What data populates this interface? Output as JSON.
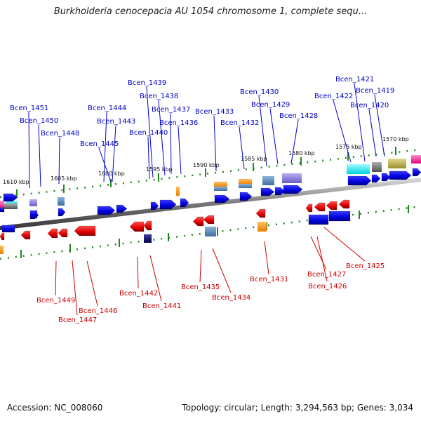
{
  "title": "Burkholderia cenocepacia AU 1054 chromosome 1, complete sequ...",
  "footer": {
    "accession": "Accession: NC_008060",
    "summary": "Topology: circular; Length: 3,294,563 bp; Genes: 3,034"
  },
  "scale_labels": [
    "1610 kbp",
    "1605 kbp",
    "1600 kbp",
    "1595 kbp",
    "1590 kbp",
    "1585 kbp",
    "1580 kbp",
    "1575 kbp",
    "1570 kbp"
  ],
  "top_gene_labels": [
    "Bcen_1451",
    "Bcen_1450",
    "Bcen_1448",
    "Bcen_1445",
    "Bcen_1444",
    "Bcen_1443",
    "Bcen_1440",
    "Bcen_1439",
    "Bcen_1438",
    "Bcen_1437",
    "Bcen_1436",
    "Bcen_1433",
    "Bcen_1432",
    "Bcen_1430",
    "Bcen_1429",
    "Bcen_1428",
    "Bcen_1422",
    "Bcen_1421",
    "Bcen_1419",
    "Bcen_1420"
  ],
  "bottom_gene_labels": [
    "Bcen_1449",
    "Bcen_1447",
    "Bcen_1446",
    "Bcen_1442",
    "Bcen_1441",
    "Bcen_1435",
    "Bcen_1434",
    "Bcen_1431",
    "Bcen_1427",
    "Bcen_1426",
    "Bcen_1425"
  ],
  "colors": {
    "forward_gene": "#0000ee",
    "reverse_gene": "#ee0000",
    "backbone": "#888888",
    "tick": "#228822",
    "top_label": "#0000cc",
    "bottom_label": "#cc0000"
  }
}
